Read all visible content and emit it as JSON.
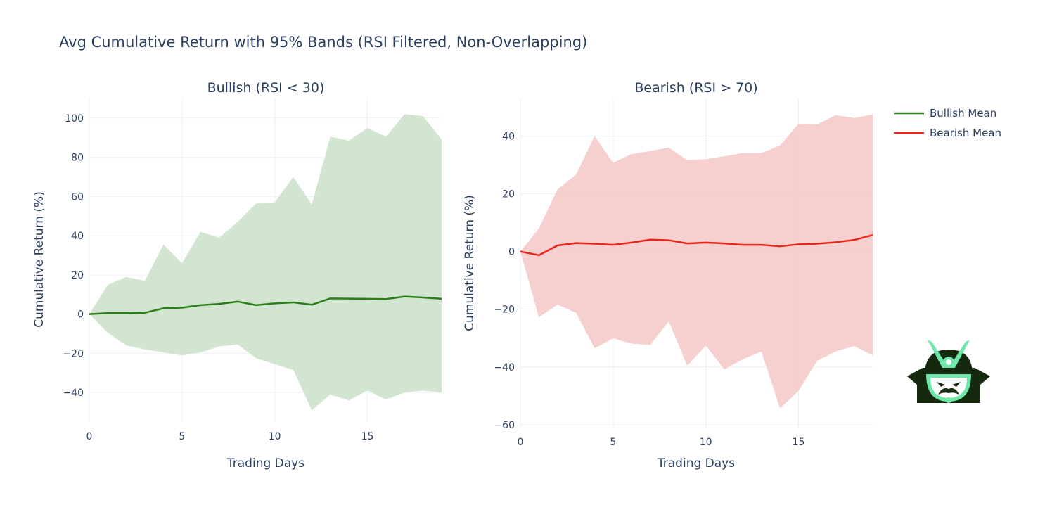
{
  "title": "Avg Cumulative Return with 95% Bands (RSI Filtered, Non-Overlapping)",
  "colors": {
    "bullish_line": "#2e7d1b",
    "bullish_band": "#d0e4cd",
    "bearish_line": "#e8261a",
    "bearish_band": "#f6cccc",
    "grid": "#ebf0f8",
    "text": "#2a3f5f",
    "logo_dark": "#15290f",
    "logo_accent": "#6ee7a8"
  },
  "legend": {
    "position": "top-right",
    "items": [
      {
        "label": "Bullish Mean",
        "color": "#2e7d1b"
      },
      {
        "label": "Bearish Mean",
        "color": "#e8261a"
      }
    ]
  },
  "logo": {
    "icon": "samurai-helmet-logo"
  },
  "chart_data": [
    {
      "type": "line",
      "title": "Bullish (RSI < 30)",
      "xlabel": "Trading Days",
      "ylabel": "Cumulative Return (%)",
      "xlim": [
        0,
        19
      ],
      "ylim": [
        -55,
        110
      ],
      "xticks": [
        0,
        5,
        10,
        15
      ],
      "yticks": [
        -40,
        -20,
        0,
        20,
        40,
        60,
        80,
        100
      ],
      "grid": true,
      "x": [
        0,
        1,
        2,
        3,
        4,
        5,
        6,
        7,
        8,
        9,
        10,
        11,
        12,
        13,
        14,
        15,
        16,
        17,
        18,
        19
      ],
      "series": [
        {
          "name": "Bullish Mean",
          "values": [
            0,
            0.5,
            0.5,
            0.7,
            3,
            3.3,
            4.6,
            5.2,
            6.4,
            4.6,
            5.5,
            6,
            4.8,
            8,
            7.9,
            7.8,
            7.7,
            9,
            8.5,
            7.8
          ]
        }
      ],
      "band": {
        "upper": [
          0,
          15,
          19,
          17,
          35.5,
          26,
          42,
          39,
          47,
          56.5,
          57,
          70,
          56,
          90.5,
          88.5,
          95,
          90.5,
          102,
          101,
          89
        ],
        "lower": [
          0,
          -9.5,
          -16,
          -18,
          -19.5,
          -21,
          -19.5,
          -16.5,
          -15.5,
          -22.5,
          -25.5,
          -28.5,
          -49,
          -41,
          -44,
          -39,
          -43.5,
          -40,
          -39,
          -40
        ]
      }
    },
    {
      "type": "line",
      "title": "Bearish (RSI > 70)",
      "xlabel": "Trading Days",
      "ylabel": "Cumulative Return (%)",
      "xlim": [
        0,
        19
      ],
      "ylim": [
        -61,
        53
      ],
      "xticks": [
        0,
        5,
        10,
        15
      ],
      "yticks": [
        -60,
        -40,
        -20,
        0,
        20,
        40
      ],
      "grid": true,
      "x": [
        0,
        1,
        2,
        3,
        4,
        5,
        6,
        7,
        8,
        9,
        10,
        11,
        12,
        13,
        14,
        15,
        16,
        17,
        18,
        19
      ],
      "series": [
        {
          "name": "Bearish Mean",
          "values": [
            0,
            -1.3,
            2.1,
            2.9,
            2.7,
            2.3,
            3.1,
            4.1,
            3.9,
            2.8,
            3.1,
            2.8,
            2.3,
            2.3,
            1.8,
            2.5,
            2.7,
            3.2,
            4,
            5.7
          ]
        }
      ],
      "band": {
        "upper": [
          0,
          8,
          21.5,
          26.6,
          40,
          30.7,
          33.8,
          34.8,
          36,
          31.6,
          32,
          33,
          34.1,
          34.1,
          36.7,
          44.2,
          44,
          47.2,
          46.2,
          47.5
        ],
        "lower": [
          0,
          -22.8,
          -18.4,
          -21.2,
          -33.5,
          -30.1,
          -31.9,
          -32.4,
          -24.2,
          -39.6,
          -32.6,
          -40.8,
          -37.3,
          -34.7,
          -54.3,
          -48.3,
          -37.9,
          -34.6,
          -32.7,
          -36
        ]
      }
    }
  ]
}
